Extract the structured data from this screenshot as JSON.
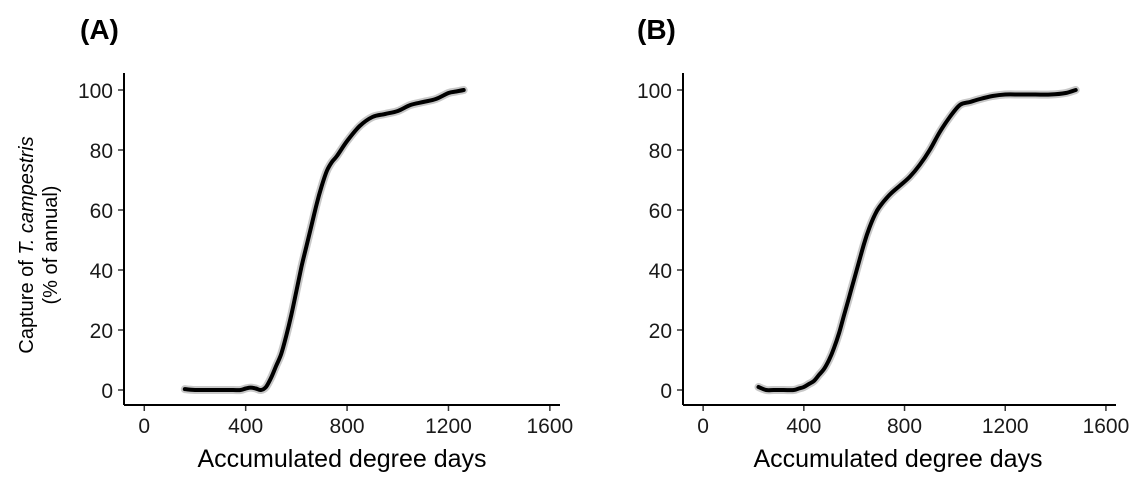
{
  "chart_data": [
    {
      "type": "line",
      "title": "(A)",
      "xlabel": "Accumulated degree days",
      "ylabel": {
        "line1_prefix": "Capture of ",
        "line1_italic": "T. campestris",
        "line2": "(% of annual)"
      },
      "xlim": [
        0,
        1600
      ],
      "ylim": [
        0,
        100
      ],
      "xticks": [
        "0",
        "400",
        "800",
        "1200",
        "1600"
      ],
      "yticks": [
        "0",
        "20",
        "40",
        "60",
        "80",
        "100"
      ],
      "grid": false,
      "series": [
        {
          "x": [
            160,
            200,
            250,
            300,
            350,
            380,
            400,
            420,
            440,
            460,
            480,
            500,
            520,
            540,
            560,
            580,
            600,
            620,
            640,
            660,
            680,
            700,
            720,
            740,
            760,
            800,
            850,
            900,
            950,
            1000,
            1050,
            1100,
            1150,
            1200,
            1230,
            1260
          ],
          "y": [
            0.3,
            0,
            0,
            0,
            0,
            0,
            0.5,
            0.8,
            0.5,
            0,
            1,
            4,
            8,
            12,
            18,
            25,
            33,
            41,
            48,
            55,
            62,
            68,
            73,
            76,
            78,
            83,
            88,
            91,
            92,
            93,
            95,
            96,
            97,
            99,
            99.5,
            100
          ]
        }
      ]
    },
    {
      "type": "line",
      "title": "(B)",
      "xlabel": "Accumulated degree days",
      "xlim": [
        0,
        1600
      ],
      "ylim": [
        0,
        100
      ],
      "xticks": [
        "0",
        "400",
        "800",
        "1200",
        "1600"
      ],
      "yticks": [
        "0",
        "20",
        "40",
        "60",
        "80",
        "100"
      ],
      "grid": false,
      "series": [
        {
          "x": [
            220,
            250,
            280,
            320,
            360,
            380,
            400,
            420,
            440,
            460,
            480,
            500,
            520,
            540,
            560,
            580,
            600,
            620,
            640,
            660,
            680,
            700,
            740,
            780,
            820,
            860,
            900,
            940,
            980,
            1020,
            1060,
            1100,
            1150,
            1200,
            1260,
            1320,
            1380,
            1440,
            1480
          ],
          "y": [
            1,
            0,
            0,
            0,
            0,
            0.5,
            1,
            2,
            3,
            5,
            7,
            10,
            14,
            19,
            25,
            31,
            37,
            43,
            49,
            54,
            58,
            61,
            65,
            68,
            71,
            75,
            80,
            86,
            91,
            95,
            96,
            97,
            98,
            98.5,
            98.5,
            98.5,
            98.5,
            99,
            100
          ]
        }
      ]
    }
  ]
}
